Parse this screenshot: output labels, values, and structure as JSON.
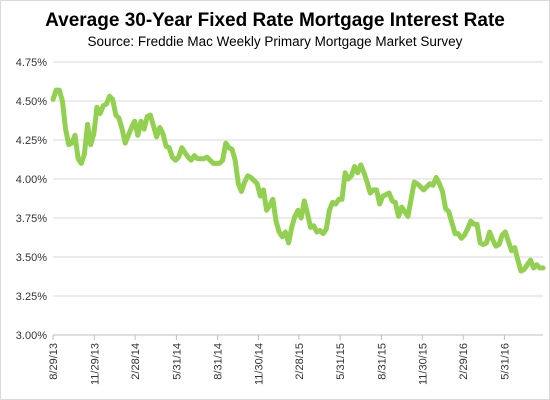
{
  "chart_data": {
    "type": "line",
    "title": "Average 30-Year Fixed Rate Mortgage Interest Rate",
    "subtitle": "Source: Freddie Mac Weekly Primary Mortgage Market Survey",
    "xlabel": "",
    "ylabel": "",
    "ylim": [
      3.0,
      4.75
    ],
    "yticks": [
      3.0,
      3.25,
      3.5,
      3.75,
      4.0,
      4.25,
      4.5,
      4.75
    ],
    "ytick_labels": [
      "3.00%",
      "3.25%",
      "3.50%",
      "3.75%",
      "4.00%",
      "4.25%",
      "4.50%",
      "4.75%"
    ],
    "xticks": [
      "2013-08-29",
      "2013-11-29",
      "2014-02-28",
      "2014-05-31",
      "2014-08-31",
      "2014-11-30",
      "2015-02-28",
      "2015-05-31",
      "2015-08-31",
      "2015-11-30",
      "2016-02-29",
      "2016-05-31"
    ],
    "xtick_labels": [
      "8/29/13",
      "11/29/13",
      "2/28/14",
      "5/31/14",
      "8/31/14",
      "11/30/14",
      "2/28/15",
      "5/31/15",
      "8/31/15",
      "11/30/15",
      "2/29/16",
      "5/31/16"
    ],
    "xlim": [
      "2013-08-29",
      "2016-08-25"
    ],
    "grid": "horizontal",
    "line_color": "#92d050",
    "series": [
      {
        "points": [
          [
            "2013-08-29",
            4.51
          ],
          [
            "2013-09-05",
            4.57
          ],
          [
            "2013-09-12",
            4.57
          ],
          [
            "2013-09-19",
            4.5
          ],
          [
            "2013-09-26",
            4.32
          ],
          [
            "2013-10-03",
            4.22
          ],
          [
            "2013-10-10",
            4.23
          ],
          [
            "2013-10-17",
            4.28
          ],
          [
            "2013-10-24",
            4.13
          ],
          [
            "2013-10-31",
            4.1
          ],
          [
            "2013-11-07",
            4.16
          ],
          [
            "2013-11-14",
            4.35
          ],
          [
            "2013-11-21",
            4.22
          ],
          [
            "2013-11-28",
            4.29
          ],
          [
            "2013-12-05",
            4.46
          ],
          [
            "2013-12-12",
            4.42
          ],
          [
            "2013-12-19",
            4.47
          ],
          [
            "2013-12-26",
            4.48
          ],
          [
            "2014-01-02",
            4.53
          ],
          [
            "2014-01-09",
            4.51
          ],
          [
            "2014-01-16",
            4.41
          ],
          [
            "2014-01-23",
            4.39
          ],
          [
            "2014-01-30",
            4.32
          ],
          [
            "2014-02-06",
            4.23
          ],
          [
            "2014-02-13",
            4.28
          ],
          [
            "2014-02-20",
            4.33
          ],
          [
            "2014-02-27",
            4.37
          ],
          [
            "2014-03-06",
            4.28
          ],
          [
            "2014-03-13",
            4.37
          ],
          [
            "2014-03-20",
            4.32
          ],
          [
            "2014-03-27",
            4.4
          ],
          [
            "2014-04-03",
            4.41
          ],
          [
            "2014-04-10",
            4.34
          ],
          [
            "2014-04-17",
            4.27
          ],
          [
            "2014-04-24",
            4.33
          ],
          [
            "2014-05-01",
            4.29
          ],
          [
            "2014-05-08",
            4.21
          ],
          [
            "2014-05-15",
            4.2
          ],
          [
            "2014-05-22",
            4.14
          ],
          [
            "2014-05-29",
            4.12
          ],
          [
            "2014-06-05",
            4.14
          ],
          [
            "2014-06-12",
            4.2
          ],
          [
            "2014-06-19",
            4.17
          ],
          [
            "2014-06-26",
            4.14
          ],
          [
            "2014-07-03",
            4.12
          ],
          [
            "2014-07-10",
            4.15
          ],
          [
            "2014-07-17",
            4.13
          ],
          [
            "2014-07-24",
            4.13
          ],
          [
            "2014-07-31",
            4.13
          ],
          [
            "2014-08-07",
            4.14
          ],
          [
            "2014-08-14",
            4.12
          ],
          [
            "2014-08-21",
            4.1
          ],
          [
            "2014-08-28",
            4.1
          ],
          [
            "2014-09-04",
            4.1
          ],
          [
            "2014-09-11",
            4.12
          ],
          [
            "2014-09-18",
            4.23
          ],
          [
            "2014-09-25",
            4.2
          ],
          [
            "2014-10-02",
            4.19
          ],
          [
            "2014-10-09",
            4.12
          ],
          [
            "2014-10-16",
            3.97
          ],
          [
            "2014-10-23",
            3.92
          ],
          [
            "2014-10-30",
            3.98
          ],
          [
            "2014-11-06",
            4.02
          ],
          [
            "2014-11-13",
            4.01
          ],
          [
            "2014-11-20",
            3.99
          ],
          [
            "2014-11-27",
            3.97
          ],
          [
            "2014-12-04",
            3.89
          ],
          [
            "2014-12-11",
            3.93
          ],
          [
            "2014-12-18",
            3.8
          ],
          [
            "2014-12-25",
            3.83
          ],
          [
            "2015-01-01",
            3.87
          ],
          [
            "2015-01-08",
            3.73
          ],
          [
            "2015-01-15",
            3.66
          ],
          [
            "2015-01-22",
            3.63
          ],
          [
            "2015-01-29",
            3.66
          ],
          [
            "2015-02-05",
            3.59
          ],
          [
            "2015-02-12",
            3.69
          ],
          [
            "2015-02-19",
            3.76
          ],
          [
            "2015-02-26",
            3.8
          ],
          [
            "2015-03-05",
            3.75
          ],
          [
            "2015-03-12",
            3.86
          ],
          [
            "2015-03-19",
            3.78
          ],
          [
            "2015-03-26",
            3.69
          ],
          [
            "2015-04-02",
            3.7
          ],
          [
            "2015-04-09",
            3.66
          ],
          [
            "2015-04-16",
            3.67
          ],
          [
            "2015-04-23",
            3.65
          ],
          [
            "2015-04-30",
            3.68
          ],
          [
            "2015-05-07",
            3.8
          ],
          [
            "2015-05-14",
            3.85
          ],
          [
            "2015-05-21",
            3.84
          ],
          [
            "2015-05-28",
            3.87
          ],
          [
            "2015-06-04",
            3.87
          ],
          [
            "2015-06-11",
            4.04
          ],
          [
            "2015-06-18",
            4.0
          ],
          [
            "2015-06-25",
            4.02
          ],
          [
            "2015-07-02",
            4.08
          ],
          [
            "2015-07-09",
            4.04
          ],
          [
            "2015-07-16",
            4.09
          ],
          [
            "2015-07-23",
            4.04
          ],
          [
            "2015-07-30",
            3.98
          ],
          [
            "2015-08-06",
            3.91
          ],
          [
            "2015-08-13",
            3.93
          ],
          [
            "2015-08-20",
            3.93
          ],
          [
            "2015-08-27",
            3.84
          ],
          [
            "2015-09-03",
            3.89
          ],
          [
            "2015-09-10",
            3.9
          ],
          [
            "2015-09-17",
            3.91
          ],
          [
            "2015-09-24",
            3.86
          ],
          [
            "2015-10-01",
            3.85
          ],
          [
            "2015-10-08",
            3.76
          ],
          [
            "2015-10-15",
            3.82
          ],
          [
            "2015-10-22",
            3.79
          ],
          [
            "2015-10-29",
            3.76
          ],
          [
            "2015-11-05",
            3.87
          ],
          [
            "2015-11-12",
            3.98
          ],
          [
            "2015-11-19",
            3.97
          ],
          [
            "2015-11-26",
            3.95
          ],
          [
            "2015-12-03",
            3.93
          ],
          [
            "2015-12-10",
            3.95
          ],
          [
            "2015-12-17",
            3.97
          ],
          [
            "2015-12-24",
            3.96
          ],
          [
            "2015-12-31",
            4.01
          ],
          [
            "2016-01-07",
            3.97
          ],
          [
            "2016-01-14",
            3.92
          ],
          [
            "2016-01-21",
            3.81
          ],
          [
            "2016-01-28",
            3.79
          ],
          [
            "2016-02-04",
            3.72
          ],
          [
            "2016-02-11",
            3.65
          ],
          [
            "2016-02-18",
            3.65
          ],
          [
            "2016-02-25",
            3.62
          ],
          [
            "2016-03-03",
            3.64
          ],
          [
            "2016-03-10",
            3.68
          ],
          [
            "2016-03-17",
            3.73
          ],
          [
            "2016-03-24",
            3.71
          ],
          [
            "2016-03-31",
            3.71
          ],
          [
            "2016-04-07",
            3.59
          ],
          [
            "2016-04-14",
            3.58
          ],
          [
            "2016-04-21",
            3.59
          ],
          [
            "2016-04-28",
            3.66
          ],
          [
            "2016-05-05",
            3.61
          ],
          [
            "2016-05-12",
            3.57
          ],
          [
            "2016-05-19",
            3.58
          ],
          [
            "2016-05-26",
            3.64
          ],
          [
            "2016-06-02",
            3.66
          ],
          [
            "2016-06-09",
            3.6
          ],
          [
            "2016-06-16",
            3.54
          ],
          [
            "2016-06-23",
            3.56
          ],
          [
            "2016-06-30",
            3.48
          ],
          [
            "2016-07-07",
            3.41
          ],
          [
            "2016-07-14",
            3.42
          ],
          [
            "2016-07-21",
            3.45
          ],
          [
            "2016-07-28",
            3.48
          ],
          [
            "2016-08-04",
            3.43
          ],
          [
            "2016-08-11",
            3.45
          ],
          [
            "2016-08-18",
            3.43
          ],
          [
            "2016-08-25",
            3.43
          ]
        ]
      }
    ]
  }
}
